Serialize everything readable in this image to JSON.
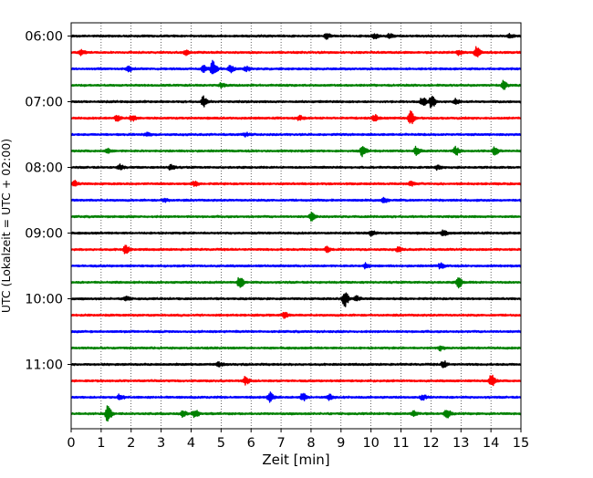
{
  "chart_data": {
    "type": "line",
    "title": "",
    "xlabel": "Zeit  [min]",
    "ylabel": "UTC (Lokalzeit = UTC + 02:00)",
    "xlim": [
      0,
      15
    ],
    "x_ticks": [
      0,
      1,
      2,
      3,
      4,
      5,
      6,
      7,
      8,
      9,
      10,
      11,
      12,
      13,
      14,
      15
    ],
    "x_tick_labels": [
      "0",
      "1",
      "2",
      "3",
      "4",
      "5",
      "6",
      "7",
      "8",
      "9",
      "10",
      "11",
      "12",
      "13",
      "14",
      "15"
    ],
    "y_tick_labels": [
      "06:00",
      "07:00",
      "08:00",
      "09:00",
      "10:00",
      "11:00"
    ],
    "y_tick_rows": [
      0,
      4,
      8,
      12,
      16,
      20
    ],
    "trace_interval_min": 15,
    "grid": "vertical dotted",
    "colors_cycle": [
      "#000000",
      "#ff0000",
      "#0000ff",
      "#008000"
    ],
    "series": [
      {
        "start": "06:00",
        "color": "#000000",
        "events": [
          {
            "t": 8.5,
            "amp": 0.35
          },
          {
            "t": 10.1,
            "amp": 0.3
          },
          {
            "t": 10.6,
            "amp": 0.25
          },
          {
            "t": 14.6,
            "amp": 0.25
          }
        ]
      },
      {
        "start": "06:15",
        "color": "#ff0000",
        "events": [
          {
            "t": 0.3,
            "amp": 0.3
          },
          {
            "t": 3.8,
            "amp": 0.3
          },
          {
            "t": 12.9,
            "amp": 0.25
          },
          {
            "t": 13.5,
            "amp": 0.7
          }
        ]
      },
      {
        "start": "06:30",
        "color": "#0000ff",
        "events": [
          {
            "t": 1.9,
            "amp": 0.3
          },
          {
            "t": 4.4,
            "amp": 0.35
          },
          {
            "t": 4.7,
            "amp": 0.95
          },
          {
            "t": 5.3,
            "amp": 0.4
          },
          {
            "t": 5.8,
            "amp": 0.3
          }
        ]
      },
      {
        "start": "06:45",
        "color": "#008000",
        "events": [
          {
            "t": 5.0,
            "amp": 0.25
          },
          {
            "t": 14.4,
            "amp": 0.55
          }
        ]
      },
      {
        "start": "07:00",
        "color": "#000000",
        "events": [
          {
            "t": 4.4,
            "amp": 0.6
          },
          {
            "t": 11.7,
            "amp": 0.5
          },
          {
            "t": 12.0,
            "amp": 0.7
          },
          {
            "t": 12.8,
            "amp": 0.3
          }
        ]
      },
      {
        "start": "07:15",
        "color": "#ff0000",
        "events": [
          {
            "t": 1.5,
            "amp": 0.4
          },
          {
            "t": 2.0,
            "amp": 0.35
          },
          {
            "t": 7.6,
            "amp": 0.25
          },
          {
            "t": 10.1,
            "amp": 0.4
          },
          {
            "t": 11.3,
            "amp": 0.8
          }
        ]
      },
      {
        "start": "07:30",
        "color": "#0000ff",
        "events": [
          {
            "t": 2.5,
            "amp": 0.2
          },
          {
            "t": 5.8,
            "amp": 0.2
          }
        ]
      },
      {
        "start": "07:45",
        "color": "#008000",
        "events": [
          {
            "t": 1.2,
            "amp": 0.25
          },
          {
            "t": 9.7,
            "amp": 0.6
          },
          {
            "t": 11.5,
            "amp": 0.5
          },
          {
            "t": 12.8,
            "amp": 0.5
          },
          {
            "t": 14.1,
            "amp": 0.45
          }
        ]
      },
      {
        "start": "08:00",
        "color": "#000000",
        "events": [
          {
            "t": 1.6,
            "amp": 0.3
          },
          {
            "t": 3.3,
            "amp": 0.3
          },
          {
            "t": 12.2,
            "amp": 0.25
          }
        ]
      },
      {
        "start": "08:15",
        "color": "#ff0000",
        "events": [
          {
            "t": 0.1,
            "amp": 0.35
          },
          {
            "t": 4.1,
            "amp": 0.25
          },
          {
            "t": 11.3,
            "amp": 0.25
          }
        ]
      },
      {
        "start": "08:30",
        "color": "#0000ff",
        "events": [
          {
            "t": 3.1,
            "amp": 0.2
          },
          {
            "t": 10.4,
            "amp": 0.35
          }
        ]
      },
      {
        "start": "08:45",
        "color": "#008000",
        "events": [
          {
            "t": 8.0,
            "amp": 0.45
          }
        ]
      },
      {
        "start": "09:00",
        "color": "#000000",
        "events": [
          {
            "t": 10.0,
            "amp": 0.3
          },
          {
            "t": 12.4,
            "amp": 0.35
          }
        ]
      },
      {
        "start": "09:15",
        "color": "#ff0000",
        "events": [
          {
            "t": 1.8,
            "amp": 0.45
          },
          {
            "t": 8.5,
            "amp": 0.3
          },
          {
            "t": 10.9,
            "amp": 0.25
          }
        ]
      },
      {
        "start": "09:30",
        "color": "#0000ff",
        "events": [
          {
            "t": 9.8,
            "amp": 0.3
          },
          {
            "t": 12.3,
            "amp": 0.3
          }
        ]
      },
      {
        "start": "09:45",
        "color": "#008000",
        "events": [
          {
            "t": 5.6,
            "amp": 0.7
          },
          {
            "t": 12.9,
            "amp": 0.6
          }
        ]
      },
      {
        "start": "10:00",
        "color": "#000000",
        "events": [
          {
            "t": 1.8,
            "amp": 0.3
          },
          {
            "t": 9.1,
            "amp": 1.0
          },
          {
            "t": 9.5,
            "amp": 0.3
          }
        ]
      },
      {
        "start": "10:15",
        "color": "#ff0000",
        "events": [
          {
            "t": 7.1,
            "amp": 0.3
          }
        ]
      },
      {
        "start": "10:30",
        "color": "#0000ff",
        "events": []
      },
      {
        "start": "10:45",
        "color": "#008000",
        "events": [
          {
            "t": 12.3,
            "amp": 0.25
          }
        ]
      },
      {
        "start": "11:00",
        "color": "#000000",
        "events": [
          {
            "t": 4.9,
            "amp": 0.25
          },
          {
            "t": 12.4,
            "amp": 0.4
          }
        ]
      },
      {
        "start": "11:15",
        "color": "#ff0000",
        "events": [
          {
            "t": 5.8,
            "amp": 0.45
          },
          {
            "t": 14.0,
            "amp": 0.7
          }
        ]
      },
      {
        "start": "11:30",
        "color": "#0000ff",
        "events": [
          {
            "t": 1.6,
            "amp": 0.35
          },
          {
            "t": 6.6,
            "amp": 0.55
          },
          {
            "t": 7.7,
            "amp": 0.5
          },
          {
            "t": 8.6,
            "amp": 0.3
          },
          {
            "t": 11.7,
            "amp": 0.3
          }
        ]
      },
      {
        "start": "11:45",
        "color": "#008000",
        "events": [
          {
            "t": 1.2,
            "amp": 0.95
          },
          {
            "t": 3.7,
            "amp": 0.4
          },
          {
            "t": 4.1,
            "amp": 0.5
          },
          {
            "t": 11.4,
            "amp": 0.3
          },
          {
            "t": 12.5,
            "amp": 0.55
          }
        ]
      }
    ]
  }
}
